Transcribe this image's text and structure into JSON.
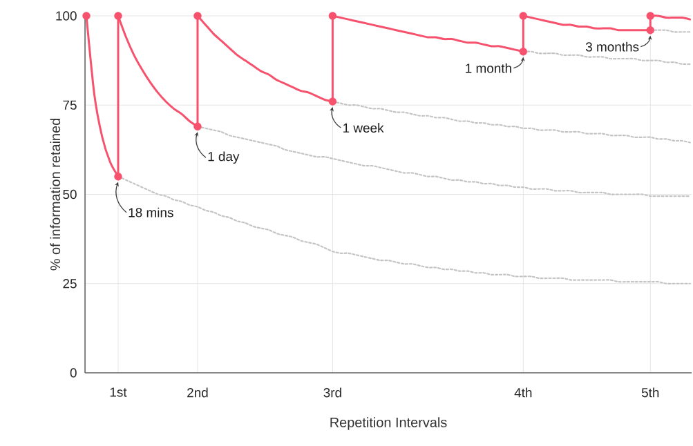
{
  "chart_data": {
    "type": "line",
    "xlabel": "Repetition Intervals",
    "ylabel": "% of information retained",
    "categories": [
      null,
      null,
      null,
      null,
      "1st",
      null,
      null,
      null,
      null,
      null,
      null,
      null,
      null,
      null,
      "2nd",
      null,
      null,
      null,
      null,
      null,
      null,
      null,
      null,
      null,
      null,
      null,
      null,
      null,
      null,
      null,
      null,
      "3rd",
      null,
      null,
      null,
      null,
      null,
      null,
      null,
      null,
      null,
      null,
      null,
      null,
      null,
      null,
      null,
      null,
      null,
      null,
      null,
      null,
      null,
      null,
      null,
      "4th",
      null,
      null,
      null,
      null,
      null,
      null,
      null,
      null,
      null,
      null,
      null,
      null,
      null,
      null,
      null,
      "5th",
      null,
      null,
      null,
      null,
      null
    ],
    "ylim": [
      0,
      100
    ],
    "yticks": [
      0,
      25,
      50,
      75,
      100
    ],
    "grid": true,
    "series": [
      {
        "line_style": "dotted",
        "color": "#c4c4c4",
        "values": [
          null,
          null,
          null,
          null,
          55,
          54,
          53,
          52,
          51,
          50,
          49.5,
          48.5,
          48,
          47,
          46.5,
          45.5,
          45,
          44,
          43.5,
          42.5,
          42,
          41,
          40.5,
          40,
          39,
          38.5,
          38,
          37,
          36.5,
          36,
          35,
          34,
          33.5,
          33.5,
          33,
          32.5,
          32,
          31.5,
          31.5,
          31,
          30.5,
          30.5,
          30,
          29.5,
          29.5,
          29,
          29,
          28.5,
          28.5,
          28,
          28,
          27.5,
          27.5,
          27.5,
          27,
          27,
          27,
          26.5,
          26.5,
          26.5,
          26.5,
          26,
          26,
          26,
          26,
          26,
          26,
          25.5,
          25.5,
          25.5,
          25.5,
          25.5,
          25.5,
          25,
          25,
          25,
          25
        ]
      },
      {
        "line_style": "dotted",
        "color": "#c4c4c4",
        "values": [
          null,
          null,
          null,
          null,
          null,
          null,
          null,
          null,
          null,
          null,
          null,
          null,
          null,
          null,
          69,
          68.5,
          68,
          67.5,
          66.5,
          66,
          65.5,
          65,
          64.5,
          64,
          63.5,
          62.5,
          62,
          61.5,
          61,
          60.5,
          60.5,
          60,
          59.5,
          59,
          58.5,
          58,
          58,
          57.5,
          57,
          56.5,
          56,
          56,
          55.5,
          55,
          55,
          54.5,
          54,
          54,
          53.5,
          53.5,
          53,
          53,
          52.5,
          52.5,
          52,
          52,
          51.5,
          51.5,
          51.5,
          51,
          51,
          51,
          50.5,
          50.5,
          50.5,
          50.5,
          50,
          50,
          50,
          50,
          50,
          49.5,
          49.5,
          49.5,
          49.5,
          49.5,
          49.5
        ]
      },
      {
        "line_style": "dotted",
        "color": "#c4c4c4",
        "values": [
          null,
          null,
          null,
          null,
          null,
          null,
          null,
          null,
          null,
          null,
          null,
          null,
          null,
          null,
          null,
          null,
          null,
          null,
          null,
          null,
          null,
          null,
          null,
          null,
          null,
          null,
          null,
          null,
          null,
          null,
          null,
          76,
          75.5,
          75,
          75,
          74.5,
          74,
          74,
          73.5,
          73,
          73,
          72.5,
          72,
          72,
          71.5,
          71.5,
          71,
          70.5,
          70.5,
          70,
          70,
          69.5,
          69.5,
          69,
          69,
          68.5,
          68.5,
          68,
          68,
          68,
          67.5,
          67.5,
          67.5,
          67,
          67,
          67,
          66.5,
          66.5,
          66.5,
          66,
          66,
          66,
          65.5,
          65.5,
          65,
          65,
          64.5
        ]
      },
      {
        "line_style": "dotted",
        "color": "#c4c4c4",
        "values": [
          null,
          null,
          null,
          null,
          null,
          null,
          null,
          null,
          null,
          null,
          null,
          null,
          null,
          null,
          null,
          null,
          null,
          null,
          null,
          null,
          null,
          null,
          null,
          null,
          null,
          null,
          null,
          null,
          null,
          null,
          null,
          null,
          null,
          null,
          null,
          null,
          null,
          null,
          null,
          null,
          null,
          null,
          null,
          null,
          null,
          null,
          null,
          null,
          null,
          null,
          null,
          null,
          null,
          null,
          null,
          90,
          90,
          89.5,
          89.5,
          89.5,
          89,
          89,
          89,
          88.5,
          88.5,
          88.5,
          88,
          88,
          88,
          88,
          87.5,
          87.5,
          87.5,
          87,
          87,
          86.5,
          86.5
        ]
      },
      {
        "line_style": "dotted",
        "color": "#c4c4c4",
        "values": [
          null,
          null,
          null,
          null,
          null,
          null,
          null,
          null,
          null,
          null,
          null,
          null,
          null,
          null,
          null,
          null,
          null,
          null,
          null,
          null,
          null,
          null,
          null,
          null,
          null,
          null,
          null,
          null,
          null,
          null,
          null,
          null,
          null,
          null,
          null,
          null,
          null,
          null,
          null,
          null,
          null,
          null,
          null,
          null,
          null,
          null,
          null,
          null,
          null,
          null,
          null,
          null,
          null,
          null,
          null,
          null,
          null,
          null,
          null,
          null,
          null,
          null,
          null,
          null,
          null,
          null,
          null,
          null,
          null,
          null,
          null,
          96,
          96,
          96,
          95.5,
          95.5,
          95.5
        ]
      },
      {
        "line_style": "solid",
        "color": "#f7526d",
        "values": [
          100,
          78,
          66,
          59,
          55,
          null,
          null,
          null,
          null,
          null,
          null,
          null,
          null,
          null,
          null,
          null,
          null,
          null,
          null,
          null,
          null,
          null,
          null,
          null,
          null,
          null,
          null,
          null,
          null,
          null,
          null,
          null,
          null,
          null,
          null,
          null,
          null,
          null,
          null,
          null,
          null,
          null,
          null,
          null,
          null,
          null,
          null,
          null,
          null,
          null,
          null,
          null,
          null,
          null,
          null,
          null,
          null,
          null,
          null,
          null,
          null,
          null,
          null,
          null,
          null,
          null,
          null,
          null,
          null,
          null,
          null,
          null,
          null,
          null,
          null,
          null,
          null
        ]
      },
      {
        "line_style": "solid",
        "color": "#f7526d",
        "values": [
          null,
          null,
          null,
          null,
          100,
          94,
          89,
          85,
          81.5,
          78.5,
          76,
          74,
          72.5,
          70.5,
          69,
          null,
          null,
          null,
          null,
          null,
          null,
          null,
          null,
          null,
          null,
          null,
          null,
          null,
          null,
          null,
          null,
          null,
          null,
          null,
          null,
          null,
          null,
          null,
          null,
          null,
          null,
          null,
          null,
          null,
          null,
          null,
          null,
          null,
          null,
          null,
          null,
          null,
          null,
          null,
          null,
          null,
          null,
          null,
          null,
          null,
          null,
          null,
          null,
          null,
          null,
          null,
          null,
          null,
          null,
          null,
          null,
          null,
          null,
          null,
          null,
          null,
          null
        ]
      },
      {
        "line_style": "solid",
        "color": "#f7526d",
        "values": [
          null,
          null,
          null,
          null,
          null,
          null,
          null,
          null,
          null,
          null,
          null,
          null,
          null,
          null,
          100,
          97.5,
          95,
          93,
          91,
          89,
          87.5,
          86,
          84.5,
          83.5,
          82,
          81,
          80,
          79,
          78.5,
          77.5,
          76.5,
          76,
          null,
          null,
          null,
          null,
          null,
          null,
          null,
          null,
          null,
          null,
          null,
          null,
          null,
          null,
          null,
          null,
          null,
          null,
          null,
          null,
          null,
          null,
          null,
          null,
          null,
          null,
          null,
          null,
          null,
          null,
          null,
          null,
          null,
          null,
          null,
          null,
          null,
          null,
          null,
          null,
          null,
          null,
          null,
          null,
          null
        ]
      },
      {
        "line_style": "solid",
        "color": "#f7526d",
        "values": [
          null,
          null,
          null,
          null,
          null,
          null,
          null,
          null,
          null,
          null,
          null,
          null,
          null,
          null,
          null,
          null,
          null,
          null,
          null,
          null,
          null,
          null,
          null,
          null,
          null,
          null,
          null,
          null,
          null,
          null,
          null,
          100,
          99.5,
          99,
          98.5,
          98,
          97.5,
          97,
          96.5,
          96,
          95.5,
          95,
          94.5,
          94,
          94,
          93.5,
          93.5,
          93,
          92.5,
          92.5,
          92,
          91.5,
          91.5,
          91,
          90.5,
          90,
          null,
          null,
          null,
          null,
          null,
          null,
          null,
          null,
          null,
          null,
          null,
          null,
          null,
          null,
          null,
          null,
          null,
          null,
          null,
          null,
          null
        ]
      },
      {
        "line_style": "solid",
        "color": "#f7526d",
        "values": [
          null,
          null,
          null,
          null,
          null,
          null,
          null,
          null,
          null,
          null,
          null,
          null,
          null,
          null,
          null,
          null,
          null,
          null,
          null,
          null,
          null,
          null,
          null,
          null,
          null,
          null,
          null,
          null,
          null,
          null,
          null,
          null,
          null,
          null,
          null,
          null,
          null,
          null,
          null,
          null,
          null,
          null,
          null,
          null,
          null,
          null,
          null,
          null,
          null,
          null,
          null,
          null,
          null,
          null,
          null,
          100,
          99.5,
          99,
          98.5,
          98,
          97.5,
          97.5,
          97,
          97,
          96.5,
          96.5,
          96.5,
          96,
          96,
          96,
          96,
          96,
          null,
          null,
          null,
          null,
          null
        ]
      },
      {
        "line_style": "solid",
        "color": "#f7526d",
        "values": [
          null,
          null,
          null,
          null,
          null,
          null,
          null,
          null,
          null,
          null,
          null,
          null,
          null,
          null,
          null,
          null,
          null,
          null,
          null,
          null,
          null,
          null,
          null,
          null,
          null,
          null,
          null,
          null,
          null,
          null,
          null,
          null,
          null,
          null,
          null,
          null,
          null,
          null,
          null,
          null,
          null,
          null,
          null,
          null,
          null,
          null,
          null,
          null,
          null,
          null,
          null,
          null,
          null,
          null,
          null,
          null,
          null,
          null,
          null,
          null,
          null,
          null,
          null,
          null,
          null,
          null,
          null,
          null,
          null,
          null,
          null,
          100,
          100,
          99.5,
          99.5,
          99.5,
          99
        ]
      },
      {
        "type": "scatter",
        "marker": "circle",
        "color": "#f7526d",
        "values": [
          100,
          null,
          null,
          null,
          100,
          null,
          null,
          null,
          null,
          null,
          null,
          null,
          null,
          null,
          100,
          null,
          null,
          null,
          null,
          null,
          null,
          null,
          null,
          null,
          null,
          null,
          null,
          null,
          null,
          null,
          null,
          100,
          null,
          null,
          null,
          null,
          null,
          null,
          null,
          null,
          null,
          null,
          null,
          null,
          null,
          null,
          null,
          null,
          null,
          null,
          null,
          null,
          null,
          null,
          null,
          100,
          null,
          null,
          null,
          null,
          null,
          null,
          null,
          null,
          null,
          null,
          null,
          null,
          null,
          null,
          null,
          100,
          null,
          null,
          null,
          null,
          null
        ]
      },
      {
        "type": "scatter",
        "marker": "circle",
        "color": "#f7526d",
        "values": [
          null,
          null,
          null,
          null,
          55,
          null,
          null,
          null,
          null,
          null,
          null,
          null,
          null,
          null,
          69,
          null,
          null,
          null,
          null,
          null,
          null,
          null,
          null,
          null,
          null,
          null,
          null,
          null,
          null,
          null,
          null,
          76,
          null,
          null,
          null,
          null,
          null,
          null,
          null,
          null,
          null,
          null,
          null,
          null,
          null,
          null,
          null,
          null,
          null,
          null,
          null,
          null,
          null,
          null,
          null,
          90,
          null,
          null,
          null,
          null,
          null,
          null,
          null,
          null,
          null,
          null,
          null,
          null,
          null,
          null,
          null,
          96,
          null,
          null,
          null,
          null,
          null
        ]
      }
    ],
    "annotations": [
      {
        "text": "18 mins",
        "x": "1st",
        "y": 55
      },
      {
        "text": "1 day",
        "x": "2nd",
        "y": 69
      },
      {
        "text": "1 week",
        "x": "3rd",
        "y": 76
      },
      {
        "text": "1 month",
        "x": "4th",
        "y": 90
      },
      {
        "text": "3 months",
        "x": "5th",
        "y": 96
      }
    ]
  }
}
